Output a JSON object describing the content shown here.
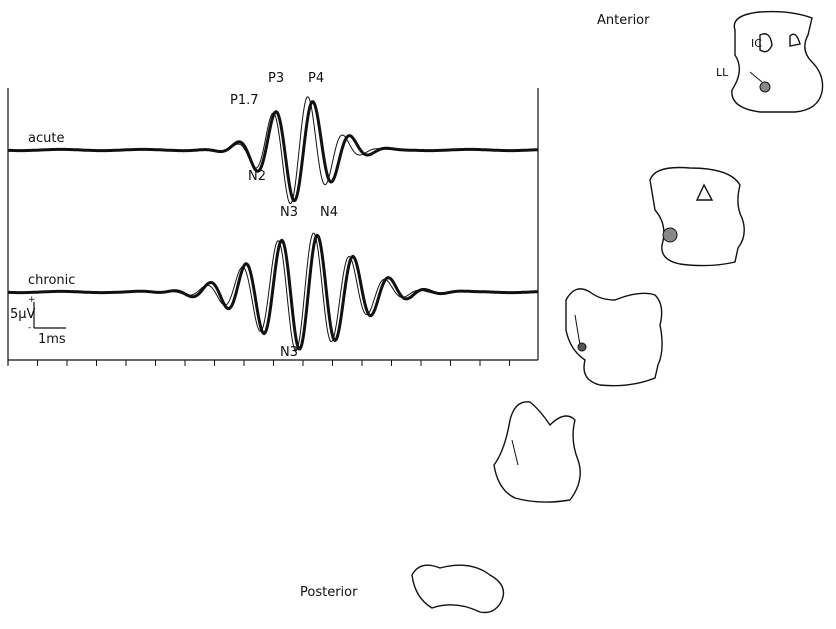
{
  "sections": {
    "anterior": "Anterior",
    "posterior": "Posterior",
    "ic": "IC",
    "ll": "LL"
  },
  "traces": {
    "acute": {
      "label": "acute",
      "peaks": [
        "P1.7",
        "P3",
        "P4",
        "N2",
        "N3",
        "N4"
      ]
    },
    "chronic": {
      "label": "chronic",
      "peaks": [
        "N3"
      ]
    }
  },
  "scale_bar": {
    "amplitude": "5μV",
    "plus": "+",
    "minus": "-",
    "time": "1ms"
  }
}
